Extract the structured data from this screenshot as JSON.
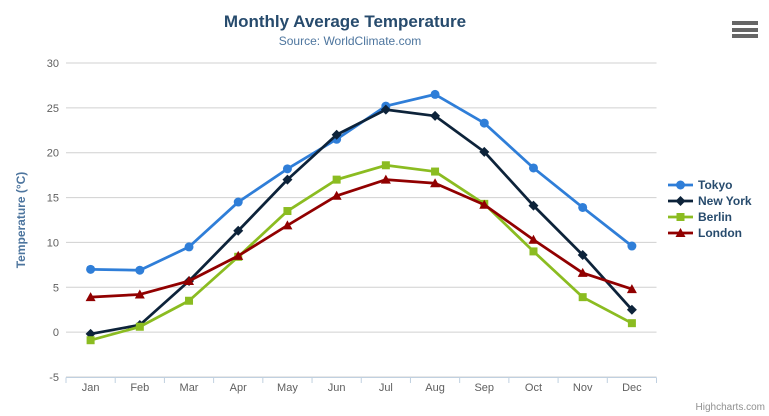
{
  "credits": "Highcharts.com",
  "icons": {
    "menu": "hamburger-icon"
  },
  "colors": {
    "title": "#274b6d",
    "subtitle": "#4d759e",
    "axis_title": "#4d759e",
    "axis_label": "#606060",
    "grid": "#d0d0d0",
    "axis_line": "#c0d0e0",
    "legend_text": "#274b6d",
    "credits": "#909090",
    "menu_icon": "#666666"
  },
  "chart_data": {
    "type": "line",
    "title": "Monthly Average Temperature",
    "subtitle": "Source: WorldClimate.com",
    "xlabel": "",
    "ylabel": "Temperature (°C)",
    "categories": [
      "Jan",
      "Feb",
      "Mar",
      "Apr",
      "May",
      "Jun",
      "Jul",
      "Aug",
      "Sep",
      "Oct",
      "Nov",
      "Dec"
    ],
    "ylim": [
      -5,
      30
    ],
    "yticks": [
      -5,
      0,
      5,
      10,
      15,
      20,
      25,
      30
    ],
    "grid": true,
    "legend_position": "right",
    "series": [
      {
        "name": "Tokyo",
        "color": "#2f7ed8",
        "marker": "circle",
        "values": [
          7.0,
          6.9,
          9.5,
          14.5,
          18.2,
          21.5,
          25.2,
          26.5,
          23.3,
          18.3,
          13.9,
          9.6
        ]
      },
      {
        "name": "New York",
        "color": "#0d233a",
        "marker": "diamond",
        "values": [
          -0.2,
          0.8,
          5.7,
          11.3,
          17.0,
          22.0,
          24.8,
          24.1,
          20.1,
          14.1,
          8.6,
          2.5
        ]
      },
      {
        "name": "Berlin",
        "color": "#8bbc21",
        "marker": "square",
        "values": [
          -0.9,
          0.6,
          3.5,
          8.4,
          13.5,
          17.0,
          18.6,
          17.9,
          14.3,
          9.0,
          3.9,
          1.0
        ]
      },
      {
        "name": "London",
        "color": "#910000",
        "marker": "triangle",
        "values": [
          3.9,
          4.2,
          5.7,
          8.5,
          11.9,
          15.2,
          17.0,
          16.6,
          14.2,
          10.3,
          6.6,
          4.8
        ]
      }
    ]
  }
}
